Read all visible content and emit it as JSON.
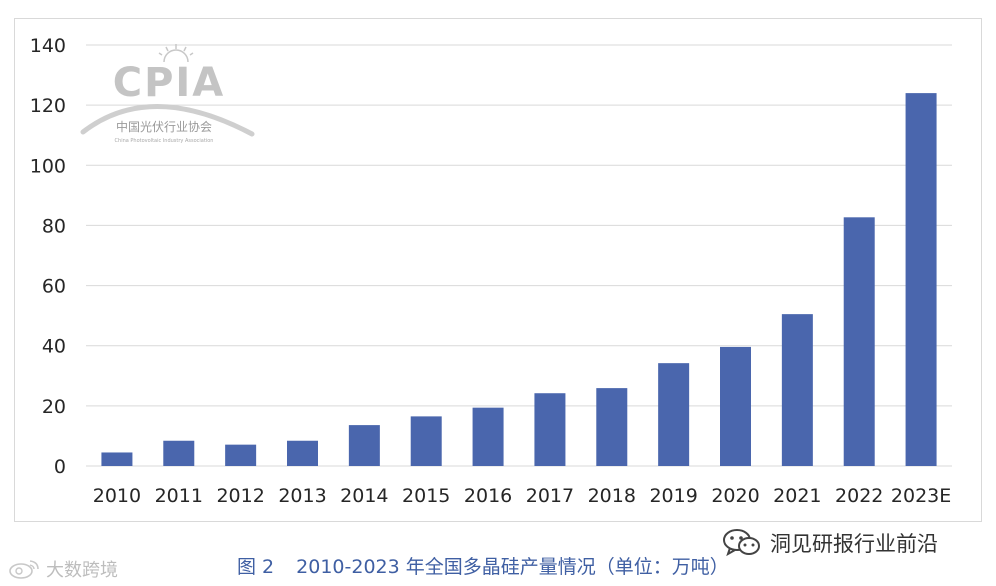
{
  "chart_data": {
    "type": "bar",
    "categories": [
      "2010",
      "2011",
      "2012",
      "2013",
      "2014",
      "2015",
      "2016",
      "2017",
      "2018",
      "2019",
      "2020",
      "2021",
      "2022",
      "2023E"
    ],
    "values": [
      4.5,
      8.4,
      7.1,
      8.4,
      13.6,
      16.5,
      19.4,
      24.2,
      25.9,
      34.2,
      39.6,
      50.5,
      82.7,
      124
    ],
    "title": "",
    "xlabel": "",
    "ylabel": "",
    "ylim": [
      0,
      140
    ],
    "yticks": [
      "0",
      "20",
      "40",
      "60",
      "80",
      "100",
      "120",
      "140"
    ],
    "grid": true,
    "bar_color": "#4a66ad",
    "grid_color": "#d9d9d9"
  },
  "logo": {
    "brand": "CPIA",
    "name_cn": "中国光伏行业协会",
    "name_en": "China Photovoltaic Industry Association"
  },
  "caption": {
    "figure_label": "图 2",
    "text": "2010-2023 年全国多晶硅产量情况（单位：万吨）"
  },
  "wechat": {
    "account": "洞见研报行业前沿",
    "icon": "wechat-icon"
  },
  "watermark": {
    "text": "大数跨境",
    "icon": "weibo-icon"
  }
}
